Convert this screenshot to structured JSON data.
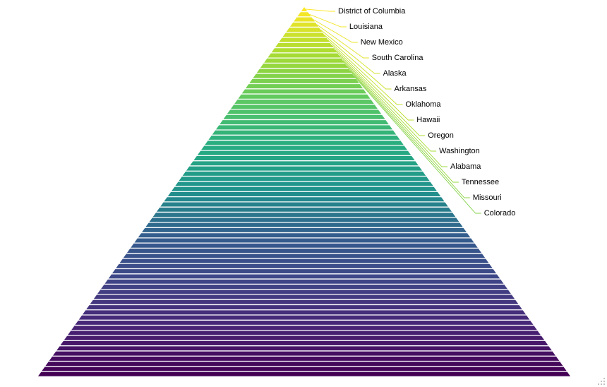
{
  "chart_data": {
    "type": "pyramid",
    "title": "",
    "slice_count": 72,
    "labeled_categories": [
      "District of Columbia",
      "Louisiana",
      "New Mexico",
      "South Carolina",
      "Alaska",
      "Arkansas",
      "Oklahoma",
      "Hawaii",
      "Oregon",
      "Washington",
      "Alabama",
      "Tennessee",
      "Missouri",
      "Colorado"
    ],
    "color_scale": "viridis",
    "color_top": "#fde725",
    "color_bottom": "#440154",
    "separator_color": "#ffffff",
    "connector_color": "#c8b400"
  }
}
